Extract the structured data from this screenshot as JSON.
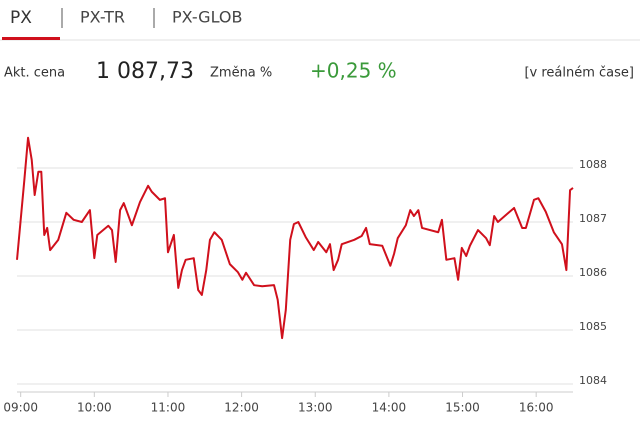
{
  "tabs": [
    "PX",
    "PX-TR",
    "PX-GLOB"
  ],
  "quote": {
    "price_label": "Akt. cena",
    "price": "1 087,73",
    "change_label": "Změna %",
    "change": "+0,25 %",
    "note": "[v reálném čase]"
  },
  "chart_data": {
    "type": "line",
    "color": "#d0101c",
    "grid": true,
    "y_axis_side": "right",
    "x": [
      8.95,
      9.05,
      9.1,
      9.15,
      9.19,
      9.24,
      9.28,
      9.32,
      9.36,
      9.4,
      9.51,
      9.62,
      9.72,
      9.83,
      9.94,
      10.0,
      10.04,
      10.19,
      10.24,
      10.29,
      10.35,
      10.4,
      10.51,
      10.62,
      10.73,
      10.78,
      10.89,
      10.96,
      11.0,
      11.08,
      11.14,
      11.19,
      11.24,
      11.35,
      11.41,
      11.46,
      11.52,
      11.57,
      11.63,
      11.73,
      11.84,
      11.95,
      12.01,
      12.06,
      12.17,
      12.28,
      12.44,
      12.49,
      12.55,
      12.6,
      12.66,
      12.71,
      12.77,
      12.87,
      12.98,
      13.04,
      13.15,
      13.2,
      13.25,
      13.31,
      13.36,
      13.53,
      13.63,
      13.69,
      13.74,
      13.91,
      14.02,
      14.07,
      14.12,
      14.23,
      14.29,
      14.34,
      14.4,
      14.45,
      14.67,
      14.72,
      14.78,
      14.89,
      14.94,
      14.99,
      15.05,
      15.1,
      15.21,
      15.32,
      15.37,
      15.43,
      15.48,
      15.64,
      15.7,
      15.81,
      15.86,
      15.97,
      16.03,
      16.13,
      16.24,
      16.35,
      16.41,
      16.46,
      16.5
    ],
    "values": [
      1086.3,
      1087.78,
      1088.56,
      1088.15,
      1087.5,
      1087.93,
      1087.93,
      1086.76,
      1086.89,
      1086.48,
      1086.67,
      1087.17,
      1087.04,
      1087.0,
      1087.22,
      1086.33,
      1086.76,
      1086.93,
      1086.85,
      1086.26,
      1087.22,
      1087.35,
      1086.94,
      1087.37,
      1087.67,
      1087.56,
      1087.41,
      1087.44,
      1086.44,
      1086.76,
      1085.78,
      1086.11,
      1086.3,
      1086.33,
      1085.74,
      1085.65,
      1086.11,
      1086.67,
      1086.81,
      1086.67,
      1086.22,
      1086.07,
      1085.93,
      1086.06,
      1085.83,
      1085.81,
      1085.83,
      1085.56,
      1084.85,
      1085.37,
      1086.67,
      1086.96,
      1087.0,
      1086.72,
      1086.48,
      1086.63,
      1086.44,
      1086.59,
      1086.11,
      1086.3,
      1086.59,
      1086.67,
      1086.74,
      1086.89,
      1086.59,
      1086.56,
      1086.19,
      1086.41,
      1086.7,
      1086.94,
      1087.22,
      1087.11,
      1087.22,
      1086.89,
      1086.81,
      1087.04,
      1086.3,
      1086.33,
      1085.93,
      1086.52,
      1086.37,
      1086.56,
      1086.85,
      1086.7,
      1086.57,
      1087.11,
      1087.0,
      1087.19,
      1087.26,
      1086.89,
      1086.89,
      1087.41,
      1087.44,
      1087.19,
      1086.81,
      1086.59,
      1086.11,
      1087.59,
      1087.63
    ],
    "xlim": [
      8.95,
      16.5
    ],
    "xticks": [
      {
        "value": 9,
        "label": "09:00"
      },
      {
        "value": 10,
        "label": "10:00"
      },
      {
        "value": 11,
        "label": "11:00"
      },
      {
        "value": 12,
        "label": "12:00"
      },
      {
        "value": 13,
        "label": "13:00"
      },
      {
        "value": 14,
        "label": "14:00"
      },
      {
        "value": 15,
        "label": "15:00"
      },
      {
        "value": 16,
        "label": "16:00"
      }
    ],
    "ylim": [
      1083.8,
      1089
    ],
    "yticks": [
      1084,
      1085,
      1086,
      1087,
      1088
    ]
  }
}
